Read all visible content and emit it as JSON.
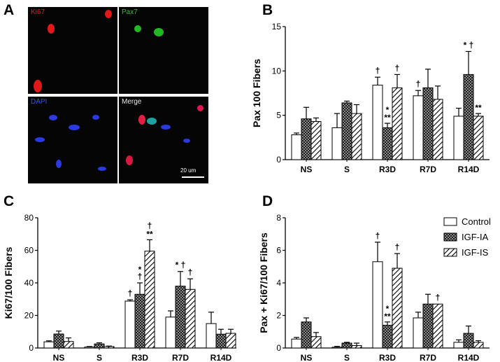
{
  "panels": {
    "a": "A",
    "b": "B",
    "c": "C",
    "d": "D"
  },
  "micrograph": {
    "tiles": [
      "Ki67",
      "Pax7",
      "DAPI",
      "Merge"
    ],
    "scale_bar": "20 um"
  },
  "colors": {
    "control": "#ffffff",
    "igf_ia": "checkered-gray",
    "igf_is": "diagonal-hatch",
    "stroke": "#000000"
  },
  "chart_data": [
    {
      "type": "bar",
      "panel": "B",
      "ylabel": "Pax 100 Fibers",
      "categories": [
        "NS",
        "S",
        "R3D",
        "R7D",
        "R14D"
      ],
      "ylim": [
        0,
        15
      ],
      "yticks": [
        0,
        5,
        10,
        15
      ],
      "series": [
        {
          "name": "Control",
          "values": [
            2.8,
            3.6,
            8.4,
            7.2,
            4.9
          ],
          "errors": [
            0.2,
            1.6,
            0.9,
            0.6,
            0.9
          ]
        },
        {
          "name": "IGF-IA",
          "values": [
            4.6,
            6.4,
            3.6,
            8.1,
            9.6
          ],
          "errors": [
            1.3,
            0.2,
            0.5,
            2.1,
            2.6
          ]
        },
        {
          "name": "IGF-IS",
          "values": [
            4.3,
            5.2,
            8.1,
            6.8,
            4.9
          ],
          "errors": [
            0.4,
            1.0,
            1.5,
            1.5,
            0.3
          ]
        }
      ],
      "annotations": [
        {
          "category": "R3D",
          "series": "Control",
          "text": "†"
        },
        {
          "category": "R3D",
          "series": "IGF-IA",
          "text": "**"
        },
        {
          "category": "R3D",
          "series": "IGF-IA",
          "text": "*"
        },
        {
          "category": "R3D",
          "series": "IGF-IS",
          "text": "†"
        },
        {
          "category": "R7D",
          "series": "Control",
          "text": "†"
        },
        {
          "category": "R14D",
          "series": "IGF-IA",
          "text": "* †"
        },
        {
          "category": "R14D",
          "series": "IGF-IS",
          "text": "**"
        }
      ]
    },
    {
      "type": "bar",
      "panel": "C",
      "ylabel": "Ki67/100 Fibers",
      "categories": [
        "NS",
        "S",
        "R3D",
        "R7D",
        "R14D"
      ],
      "ylim": [
        0,
        80
      ],
      "yticks": [
        0,
        20,
        40,
        60,
        80
      ],
      "series": [
        {
          "name": "Control",
          "values": [
            3.8,
            0.6,
            28.8,
            19.0,
            15.0
          ],
          "errors": [
            0.6,
            0.3,
            0.8,
            3.8,
            7.0
          ]
        },
        {
          "name": "IGF-IA",
          "values": [
            8.6,
            2.5,
            33.0,
            38.0,
            8.5
          ],
          "errors": [
            1.8,
            0.7,
            7.0,
            9.0,
            3.0
          ]
        },
        {
          "name": "IGF-IS",
          "values": [
            4.0,
            0.9,
            59.5,
            36.0,
            9.0
          ],
          "errors": [
            2.2,
            0.3,
            7.0,
            6.5,
            2.5
          ]
        }
      ],
      "annotations": [
        {
          "category": "R3D",
          "series": "Control",
          "text": "†"
        },
        {
          "category": "R3D",
          "series": "IGF-IA",
          "text": "†"
        },
        {
          "category": "R3D",
          "series": "IGF-IA",
          "text": "*"
        },
        {
          "category": "R3D",
          "series": "IGF-IS",
          "text": "**"
        },
        {
          "category": "R3D",
          "series": "IGF-IS",
          "text": "†"
        },
        {
          "category": "R7D",
          "series": "IGF-IA",
          "text": "* †"
        },
        {
          "category": "R7D",
          "series": "IGF-IS",
          "text": "†"
        }
      ]
    },
    {
      "type": "bar",
      "panel": "D",
      "ylabel": "Pax + Ki67/100 Fibers",
      "categories": [
        "NS",
        "S",
        "R3D",
        "R7D",
        "R14D"
      ],
      "ylim": [
        0,
        8
      ],
      "yticks": [
        0,
        2,
        4,
        6,
        8
      ],
      "series": [
        {
          "name": "Control",
          "values": [
            0.55,
            0.05,
            5.3,
            1.85,
            0.35
          ],
          "errors": [
            0.1,
            0.05,
            1.2,
            0.35,
            0.15
          ]
        },
        {
          "name": "IGF-IA",
          "values": [
            1.6,
            0.3,
            1.4,
            2.7,
            0.9
          ],
          "errors": [
            0.25,
            0.05,
            0.2,
            0.6,
            0.45
          ]
        },
        {
          "name": "IGF-IS",
          "values": [
            0.7,
            0.15,
            4.9,
            2.7,
            0.35
          ],
          "errors": [
            0.25,
            0.15,
            0.9,
            0.0,
            0.1
          ]
        }
      ],
      "annotations": [
        {
          "category": "R3D",
          "series": "Control",
          "text": "†"
        },
        {
          "category": "R3D",
          "series": "IGF-IA",
          "text": "**"
        },
        {
          "category": "R3D",
          "series": "IGF-IA",
          "text": "*"
        },
        {
          "category": "R3D",
          "series": "IGF-IS",
          "text": "†"
        },
        {
          "category": "R7D",
          "series": "IGF-IS",
          "text": "†"
        }
      ],
      "legend": {
        "placement": "top-right",
        "entries": [
          "Control",
          "IGF-IA",
          "IGF-IS"
        ]
      }
    }
  ]
}
